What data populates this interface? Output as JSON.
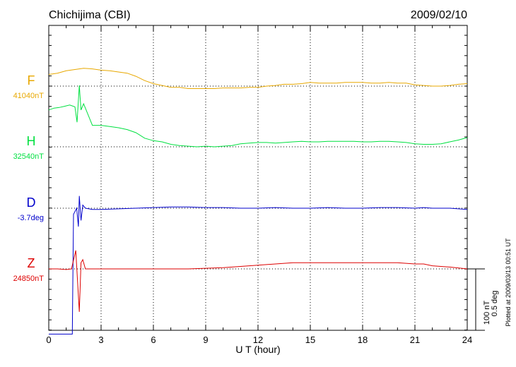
{
  "header": {
    "station": "Chichijima (CBI)",
    "date": "2009/02/10"
  },
  "footer": {
    "plotted": "Plotted at 2009/03/13 00:51 UT",
    "scale_nt": "100 nT",
    "scale_deg": "0.5 deg"
  },
  "chart_data": {
    "type": "line",
    "xlabel": "U T (hour)",
    "xlim": [
      0,
      24
    ],
    "xticks": [
      0,
      3,
      6,
      9,
      12,
      15,
      18,
      21,
      24
    ],
    "grid": true,
    "series": [
      {
        "name": "F",
        "baseline": "41040nT",
        "color": "#e8a800",
        "x": [
          0,
          0.5,
          1,
          1.5,
          2,
          2.5,
          3,
          3.5,
          4,
          4.5,
          5,
          5.5,
          6,
          6.5,
          7,
          7.5,
          8,
          8.5,
          9,
          9.5,
          10,
          10.5,
          11,
          11.5,
          12,
          12.5,
          13,
          13.5,
          14,
          14.5,
          15,
          15.5,
          16,
          16.5,
          17,
          17.5,
          18,
          18.5,
          19,
          19.5,
          20,
          20.5,
          21,
          21.5,
          22,
          22.5,
          23,
          23.5,
          24
        ],
        "values": [
          19,
          21,
          25,
          27,
          29,
          28,
          26,
          25,
          23,
          21,
          16,
          9,
          4,
          1,
          -2,
          -2,
          -4,
          -4,
          -4,
          -4,
          -3,
          -3,
          -3,
          -2,
          -2,
          0,
          1,
          3,
          3,
          4,
          6,
          5,
          5,
          5,
          6,
          6,
          6,
          5,
          5,
          6,
          5,
          5,
          2,
          1,
          0,
          0,
          1,
          3,
          4
        ]
      },
      {
        "name": "H",
        "baseline": "32540nT",
        "color": "#00e040",
        "x": [
          0,
          0.3,
          0.6,
          0.9,
          1.2,
          1.5,
          1.62,
          1.75,
          1.85,
          2.0,
          2.5,
          3,
          3.5,
          4,
          4.5,
          5,
          5.5,
          6,
          6.5,
          7,
          7.5,
          8,
          8.5,
          9,
          9.5,
          10,
          10.5,
          11,
          11.5,
          12,
          12.5,
          13,
          13.5,
          14,
          14.5,
          15,
          15.5,
          16,
          16.5,
          17,
          17.5,
          18,
          18.5,
          19,
          19.5,
          20,
          20.5,
          21,
          21.5,
          22,
          22.5,
          23,
          23.5,
          24
        ],
        "values": [
          60,
          63,
          64,
          66,
          68,
          65,
          40,
          100,
          60,
          70,
          35,
          35,
          33,
          31,
          28,
          23,
          14,
          10,
          8,
          4,
          2,
          1,
          0,
          1,
          0,
          1,
          2,
          5,
          6,
          7,
          7,
          6,
          7,
          8,
          9,
          8,
          8,
          9,
          9,
          9,
          9,
          8,
          8,
          9,
          9,
          8,
          7,
          5,
          4,
          4,
          5,
          8,
          11,
          15
        ]
      },
      {
        "name": "D",
        "baseline": "-3.7deg",
        "color": "#0000cc",
        "x": [
          0,
          0.5,
          1.0,
          1.35,
          1.42,
          1.6,
          1.7,
          1.75,
          1.85,
          1.95,
          2.1,
          2.5,
          3,
          4,
          5,
          6,
          7,
          8,
          9,
          10,
          11,
          12,
          13,
          14,
          15,
          16,
          17,
          18,
          19,
          20,
          21,
          21.5,
          22,
          23,
          24
        ],
        "values": [
          -205,
          -205,
          -205,
          -205,
          -10,
          0,
          -30,
          20,
          -20,
          5,
          0,
          -2,
          -2,
          -1,
          0,
          1,
          2,
          2,
          1,
          1,
          0,
          0,
          1,
          0,
          0,
          1,
          0,
          0,
          1,
          1,
          0,
          1,
          0,
          0,
          -2
        ]
      },
      {
        "name": "Z",
        "baseline": "24850nT",
        "color": "#dd0000",
        "x": [
          0,
          0.5,
          1,
          1.3,
          1.55,
          1.65,
          1.75,
          1.85,
          1.95,
          2.1,
          2.5,
          3,
          4,
          5,
          6,
          7,
          8,
          9,
          10,
          11,
          12,
          13,
          14,
          15,
          16,
          17,
          18,
          19,
          20,
          21,
          21.5,
          22,
          23,
          24
        ],
        "values": [
          0,
          0,
          -1,
          0,
          30,
          -20,
          -70,
          10,
          15,
          0,
          0,
          0,
          0,
          0,
          0,
          0,
          0,
          1,
          2,
          4,
          6,
          8,
          10,
          10,
          10,
          10,
          10,
          10,
          10,
          8,
          8,
          5,
          3,
          0
        ]
      }
    ]
  }
}
